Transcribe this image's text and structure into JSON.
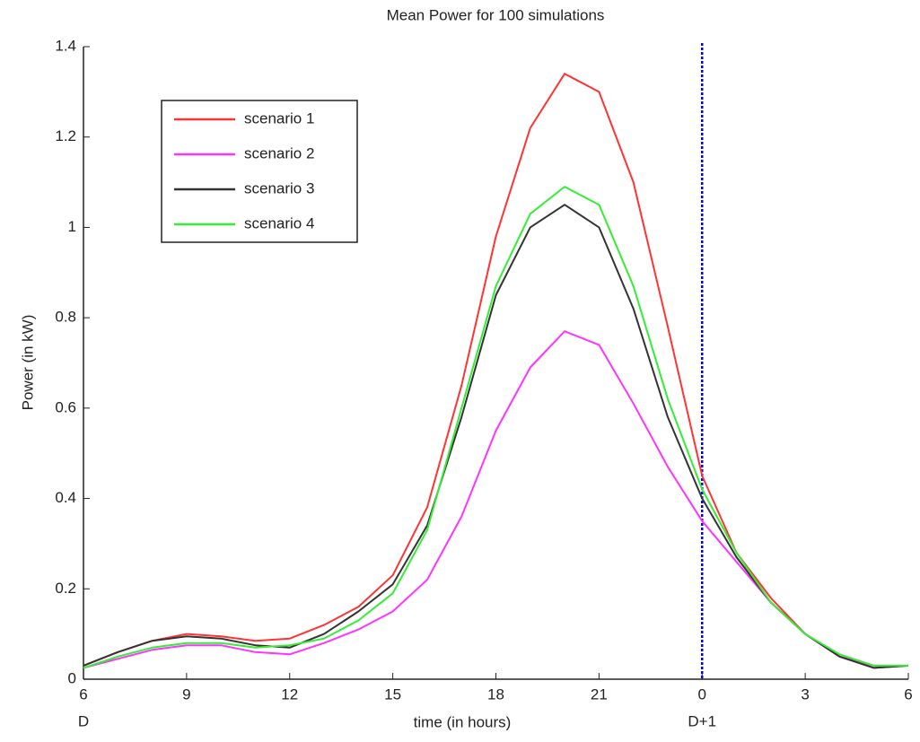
{
  "chart_data": {
    "type": "line",
    "title": "Mean Power for 100 simulations",
    "xlabel": "time (in hours)",
    "ylabel": "Power (in kW)",
    "x": [
      6,
      7,
      8,
      9,
      10,
      11,
      12,
      13,
      14,
      15,
      16,
      17,
      18,
      19,
      20,
      21,
      22,
      23,
      24,
      25,
      26,
      27,
      28,
      29,
      30
    ],
    "series": [
      {
        "name": "scenario 1",
        "color": "#ff3333",
        "values": [
          0.03,
          0.06,
          0.085,
          0.1,
          0.095,
          0.085,
          0.09,
          0.12,
          0.16,
          0.23,
          0.38,
          0.65,
          0.98,
          1.22,
          1.34,
          1.3,
          1.1,
          0.78,
          0.45,
          0.28,
          0.18,
          0.1,
          0.05,
          0.025,
          0.03
        ]
      },
      {
        "name": "scenario 2",
        "color": "#ff33ff",
        "values": [
          0.025,
          0.045,
          0.065,
          0.075,
          0.075,
          0.06,
          0.055,
          0.08,
          0.11,
          0.15,
          0.22,
          0.36,
          0.55,
          0.69,
          0.77,
          0.74,
          0.61,
          0.47,
          0.35,
          0.26,
          0.17,
          0.1,
          0.05,
          0.03,
          0.03
        ]
      },
      {
        "name": "scenario 3",
        "color": "#333333",
        "values": [
          0.03,
          0.06,
          0.085,
          0.095,
          0.09,
          0.075,
          0.07,
          0.1,
          0.15,
          0.21,
          0.34,
          0.58,
          0.85,
          1.0,
          1.05,
          1.0,
          0.82,
          0.58,
          0.4,
          0.27,
          0.17,
          0.1,
          0.05,
          0.025,
          0.03
        ]
      },
      {
        "name": "scenario 4",
        "color": "#33ee33",
        "values": [
          0.025,
          0.05,
          0.07,
          0.08,
          0.08,
          0.07,
          0.075,
          0.09,
          0.13,
          0.19,
          0.33,
          0.6,
          0.87,
          1.03,
          1.09,
          1.05,
          0.87,
          0.62,
          0.42,
          0.28,
          0.17,
          0.1,
          0.055,
          0.03,
          0.03
        ]
      }
    ],
    "xlim": [
      6,
      30
    ],
    "xticks": [
      6,
      9,
      12,
      15,
      18,
      21,
      {
        "value": 24,
        "label": "0"
      },
      {
        "value": 27,
        "label": "3"
      },
      {
        "value": 30,
        "label": "6"
      }
    ],
    "day_labels": [
      {
        "value": 6,
        "label": "D"
      },
      {
        "value": 24,
        "label": "D+1"
      }
    ],
    "ylim": [
      0,
      1.4
    ],
    "yticks": [
      0,
      0.2,
      0.4,
      0.6,
      0.8,
      1,
      1.2,
      1.4
    ],
    "vline": {
      "value": 24,
      "color": "#0000ff"
    },
    "legend": "upper left"
  }
}
